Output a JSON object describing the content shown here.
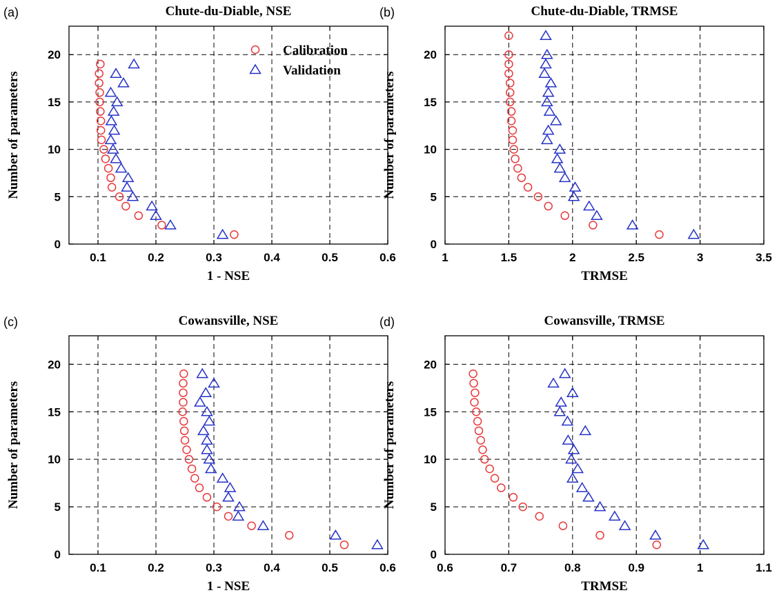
{
  "chart_data": [
    {
      "type": "scatter",
      "panel_label": "(a)",
      "title": "Chute-du-Diable, NSE",
      "xlabel": "1 - NSE",
      "ylabel": "Number of parameters",
      "xlim": [
        0.05,
        0.6
      ],
      "ylim": [
        0,
        23
      ],
      "xticks": [
        "0.1",
        "0.2",
        "0.3",
        "0.4",
        "0.5",
        "0.6"
      ],
      "yticks": [
        "0",
        "5",
        "10",
        "15",
        "20"
      ],
      "grid": true,
      "legend": "top-right",
      "series": [
        {
          "name": "Calibration",
          "marker": "circle",
          "color": "#e8393b",
          "points": [
            [
              0.335,
              1
            ],
            [
              0.21,
              2
            ],
            [
              0.17,
              3
            ],
            [
              0.148,
              4
            ],
            [
              0.137,
              5
            ],
            [
              0.124,
              6
            ],
            [
              0.122,
              7
            ],
            [
              0.118,
              8
            ],
            [
              0.113,
              9
            ],
            [
              0.11,
              10
            ],
            [
              0.106,
              11
            ],
            [
              0.105,
              12
            ],
            [
              0.105,
              13
            ],
            [
              0.104,
              14
            ],
            [
              0.103,
              15
            ],
            [
              0.103,
              16
            ],
            [
              0.102,
              17
            ],
            [
              0.102,
              18
            ],
            [
              0.104,
              19
            ]
          ]
        },
        {
          "name": "Validation",
          "marker": "triangle",
          "color": "#2431c6",
          "points": [
            [
              0.315,
              1
            ],
            [
              0.225,
              2
            ],
            [
              0.2,
              3
            ],
            [
              0.193,
              4
            ],
            [
              0.16,
              5
            ],
            [
              0.15,
              6
            ],
            [
              0.152,
              7
            ],
            [
              0.14,
              8
            ],
            [
              0.131,
              9
            ],
            [
              0.126,
              10
            ],
            [
              0.122,
              11
            ],
            [
              0.128,
              12
            ],
            [
              0.123,
              13
            ],
            [
              0.127,
              14
            ],
            [
              0.133,
              15
            ],
            [
              0.122,
              16
            ],
            [
              0.144,
              17
            ],
            [
              0.131,
              18
            ],
            [
              0.162,
              19
            ]
          ]
        }
      ]
    },
    {
      "type": "scatter",
      "panel_label": "(b)",
      "title": "Chute-du-Diable, TRMSE",
      "xlabel": "TRMSE",
      "ylabel": "Number of parameters",
      "xlim": [
        1,
        3.5
      ],
      "ylim": [
        0,
        23
      ],
      "xticks": [
        "1",
        "1.5",
        "2",
        "2.5",
        "3",
        "3.5"
      ],
      "yticks": [
        "0",
        "5",
        "10",
        "15",
        "20"
      ],
      "grid": true,
      "legend": "none",
      "series": [
        {
          "name": "Calibration",
          "marker": "circle",
          "color": "#e8393b",
          "points": [
            [
              2.68,
              1
            ],
            [
              2.16,
              2
            ],
            [
              1.94,
              3
            ],
            [
              1.81,
              4
            ],
            [
              1.73,
              5
            ],
            [
              1.65,
              6
            ],
            [
              1.6,
              7
            ],
            [
              1.57,
              8
            ],
            [
              1.55,
              9
            ],
            [
              1.54,
              10
            ],
            [
              1.53,
              11
            ],
            [
              1.53,
              12
            ],
            [
              1.52,
              13
            ],
            [
              1.52,
              14
            ],
            [
              1.51,
              15
            ],
            [
              1.51,
              16
            ],
            [
              1.51,
              17
            ],
            [
              1.5,
              18
            ],
            [
              1.5,
              19
            ],
            [
              1.5,
              20
            ],
            [
              1.5,
              22
            ]
          ]
        },
        {
          "name": "Validation",
          "marker": "triangle",
          "color": "#2431c6",
          "points": [
            [
              2.95,
              1
            ],
            [
              2.47,
              2
            ],
            [
              2.19,
              3
            ],
            [
              2.13,
              4
            ],
            [
              2.01,
              5
            ],
            [
              2.02,
              6
            ],
            [
              1.94,
              7
            ],
            [
              1.9,
              8
            ],
            [
              1.88,
              9
            ],
            [
              1.9,
              10
            ],
            [
              1.8,
              11
            ],
            [
              1.81,
              12
            ],
            [
              1.87,
              13
            ],
            [
              1.82,
              14
            ],
            [
              1.8,
              15
            ],
            [
              1.81,
              16
            ],
            [
              1.83,
              17
            ],
            [
              1.78,
              18
            ],
            [
              1.79,
              19
            ],
            [
              1.8,
              20
            ],
            [
              1.79,
              22
            ]
          ]
        }
      ]
    },
    {
      "type": "scatter",
      "panel_label": "(c)",
      "title": "Cowansville, NSE",
      "xlabel": "1 - NSE",
      "ylabel": "Number of parameters",
      "xlim": [
        0.05,
        0.6
      ],
      "ylim": [
        0,
        23
      ],
      "xticks": [
        "0.1",
        "0.2",
        "0.3",
        "0.4",
        "0.5",
        "0.6"
      ],
      "yticks": [
        "0",
        "5",
        "10",
        "15",
        "20"
      ],
      "grid": true,
      "legend": "none",
      "series": [
        {
          "name": "Calibration",
          "marker": "circle",
          "color": "#e8393b",
          "points": [
            [
              0.525,
              1
            ],
            [
              0.43,
              2
            ],
            [
              0.365,
              3
            ],
            [
              0.325,
              4
            ],
            [
              0.305,
              5
            ],
            [
              0.288,
              6
            ],
            [
              0.275,
              7
            ],
            [
              0.267,
              8
            ],
            [
              0.262,
              9
            ],
            [
              0.257,
              10
            ],
            [
              0.253,
              11
            ],
            [
              0.25,
              12
            ],
            [
              0.249,
              13
            ],
            [
              0.248,
              14
            ],
            [
              0.246,
              15
            ],
            [
              0.247,
              16
            ],
            [
              0.247,
              17
            ],
            [
              0.247,
              18
            ],
            [
              0.248,
              19
            ]
          ]
        },
        {
          "name": "Validation",
          "marker": "triangle",
          "color": "#2431c6",
          "points": [
            [
              0.582,
              1
            ],
            [
              0.51,
              2
            ],
            [
              0.385,
              3
            ],
            [
              0.342,
              4
            ],
            [
              0.344,
              5
            ],
            [
              0.325,
              6
            ],
            [
              0.328,
              7
            ],
            [
              0.315,
              8
            ],
            [
              0.295,
              9
            ],
            [
              0.292,
              10
            ],
            [
              0.288,
              11
            ],
            [
              0.288,
              12
            ],
            [
              0.282,
              13
            ],
            [
              0.292,
              14
            ],
            [
              0.288,
              15
            ],
            [
              0.276,
              16
            ],
            [
              0.286,
              17
            ],
            [
              0.3,
              18
            ],
            [
              0.28,
              19
            ]
          ]
        }
      ]
    },
    {
      "type": "scatter",
      "panel_label": "(d)",
      "title": "Cowansville, TRMSE",
      "xlabel": "TRMSE",
      "ylabel": "Number of parameters",
      "xlim": [
        0.6,
        1.1
      ],
      "ylim": [
        0,
        23
      ],
      "xticks": [
        "0.6",
        "0.7",
        "0.8",
        "0.9",
        "1",
        "1.1"
      ],
      "yticks": [
        "0",
        "5",
        "10",
        "15",
        "20"
      ],
      "grid": true,
      "legend": "none",
      "series": [
        {
          "name": "Calibration",
          "marker": "circle",
          "color": "#e8393b",
          "points": [
            [
              0.932,
              1
            ],
            [
              0.843,
              2
            ],
            [
              0.785,
              3
            ],
            [
              0.748,
              4
            ],
            [
              0.722,
              5
            ],
            [
              0.707,
              6
            ],
            [
              0.688,
              7
            ],
            [
              0.678,
              8
            ],
            [
              0.67,
              9
            ],
            [
              0.662,
              10
            ],
            [
              0.659,
              11
            ],
            [
              0.656,
              12
            ],
            [
              0.653,
              13
            ],
            [
              0.651,
              14
            ],
            [
              0.649,
              15
            ],
            [
              0.646,
              16
            ],
            [
              0.647,
              17
            ],
            [
              0.645,
              18
            ],
            [
              0.644,
              19
            ]
          ]
        },
        {
          "name": "Validation",
          "marker": "triangle",
          "color": "#2431c6",
          "points": [
            [
              1.005,
              1
            ],
            [
              0.93,
              2
            ],
            [
              0.882,
              3
            ],
            [
              0.866,
              4
            ],
            [
              0.843,
              5
            ],
            [
              0.825,
              6
            ],
            [
              0.815,
              7
            ],
            [
              0.8,
              8
            ],
            [
              0.808,
              9
            ],
            [
              0.798,
              10
            ],
            [
              0.802,
              11
            ],
            [
              0.793,
              12
            ],
            [
              0.82,
              13
            ],
            [
              0.792,
              14
            ],
            [
              0.78,
              15
            ],
            [
              0.782,
              16
            ],
            [
              0.8,
              17
            ],
            [
              0.77,
              18
            ],
            [
              0.788,
              19
            ]
          ]
        }
      ]
    }
  ]
}
